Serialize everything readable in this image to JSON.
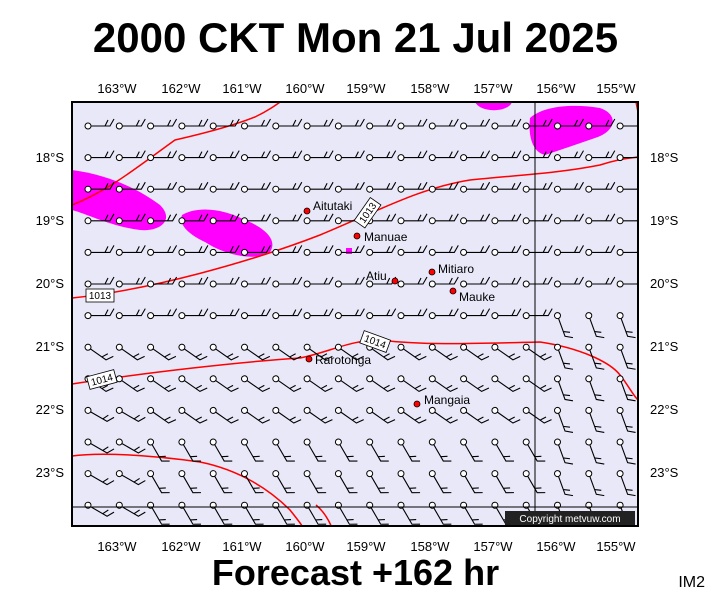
{
  "header": {
    "title": "2000 CKT Mon 21 Jul 2025"
  },
  "footer": {
    "forecast": "Forecast +162 hr",
    "code": "IM2"
  },
  "map": {
    "lon_ticks": [
      "163°W",
      "162°W",
      "161°W",
      "160°W",
      "159°W",
      "158°W",
      "157°W",
      "156°W",
      "155°W"
    ],
    "lat_ticks": [
      "18°S",
      "19°S",
      "20°S",
      "21°S",
      "22°S",
      "23°S"
    ],
    "isobar_labels": [
      "1013",
      "1013",
      "1014",
      "1014"
    ],
    "islands": [
      "Aitutaki",
      "Manuae",
      "Mitiaro",
      "Atiu",
      "Mauke",
      "Rarotonga",
      "Mangaia"
    ],
    "copyright": "Copyright metvuw.com",
    "colors": {
      "background": "#e8e8f8",
      "precip": "#ff00ff",
      "isobar": "#ff0000",
      "island": "#ff0000"
    }
  }
}
